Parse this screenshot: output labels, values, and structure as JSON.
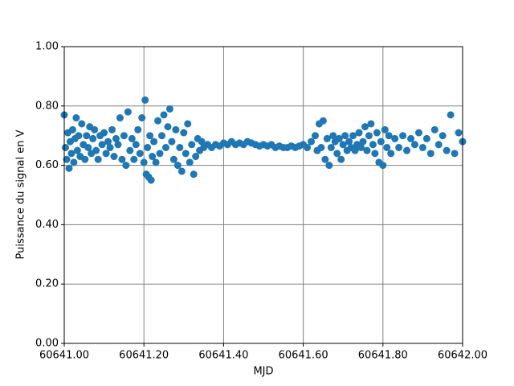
{
  "chart_data": {
    "type": "scatter",
    "xlabel": "MJD",
    "ylabel": "Puissance du signal en V",
    "color": "#1f77b4",
    "grid": true,
    "xlim": [
      60641,
      60642
    ],
    "ylim": [
      0,
      1
    ],
    "xticks": [
      {
        "value": 60641,
        "label": "60641.00"
      },
      {
        "value": 60641.2,
        "label": "60641.20"
      },
      {
        "value": 60641.4,
        "label": "60641.40"
      },
      {
        "value": 60641.6,
        "label": "60641.60"
      },
      {
        "value": 60641.8,
        "label": "60641.80"
      },
      {
        "value": 60642,
        "label": "60642.00"
      }
    ],
    "yticks": [
      {
        "value": 0,
        "label": "0.00"
      },
      {
        "value": 0.2,
        "label": "0.20"
      },
      {
        "value": 0.4,
        "label": "0.40"
      },
      {
        "value": 0.6,
        "label": "0.60"
      },
      {
        "value": 0.8,
        "label": "0.80"
      },
      {
        "value": 1,
        "label": "1.00"
      }
    ],
    "x": [
      60641.0,
      60641.003,
      60641.006,
      60641.009,
      60641.012,
      60641.015,
      60641.018,
      60641.021,
      60641.024,
      60641.027,
      60641.03,
      60641.033,
      60641.036,
      60641.04,
      60641.044,
      60641.048,
      60641.052,
      60641.056,
      60641.06,
      60641.064,
      60641.068,
      60641.072,
      60641.076,
      60641.08,
      60641.085,
      60641.09,
      60641.095,
      60641.1,
      60641.105,
      60641.11,
      60641.115,
      60641.12,
      60641.125,
      60641.13,
      60641.135,
      60641.14,
      60641.145,
      60641.15,
      60641.155,
      60641.16,
      60641.165,
      60641.17,
      60641.175,
      60641.18,
      60641.185,
      60641.19,
      60641.195,
      60641.2,
      60641.203,
      60641.206,
      60641.209,
      60641.212,
      60641.215,
      60641.218,
      60641.221,
      60641.225,
      60641.23,
      60641.235,
      60641.24,
      60641.245,
      60641.25,
      60641.255,
      60641.26,
      60641.265,
      60641.27,
      60641.275,
      60641.28,
      60641.285,
      60641.29,
      60641.295,
      60641.3,
      60641.305,
      60641.31,
      60641.315,
      60641.32,
      60641.325,
      60641.33,
      60641.335,
      60641.34,
      60641.345,
      60641.35,
      60641.36,
      60641.37,
      60641.38,
      60641.39,
      60641.4,
      60641.41,
      60641.42,
      60641.43,
      60641.44,
      60641.45,
      60641.46,
      60641.47,
      60641.48,
      60641.49,
      60641.5,
      60641.51,
      60641.52,
      60641.53,
      60641.54,
      60641.55,
      60641.56,
      60641.57,
      60641.58,
      60641.59,
      60641.6,
      60641.61,
      60641.62,
      60641.63,
      60641.635,
      60641.64,
      60641.645,
      60641.65,
      60641.655,
      60641.66,
      60641.665,
      60641.67,
      60641.675,
      60641.68,
      60641.685,
      60641.69,
      60641.695,
      60641.7,
      60641.705,
      60641.71,
      60641.715,
      60641.72,
      60641.725,
      60641.73,
      60641.735,
      60641.74,
      60641.745,
      60641.75,
      60641.755,
      60641.76,
      60641.765,
      60641.77,
      60641.775,
      60641.78,
      60641.785,
      60641.79,
      60641.795,
      60641.8,
      60641.805,
      60641.81,
      60641.815,
      60641.82,
      60641.83,
      60641.84,
      60641.85,
      60641.86,
      60641.87,
      60641.88,
      60641.89,
      60641.9,
      60641.91,
      60641.92,
      60641.93,
      60641.94,
      60641.95,
      60641.96,
      60641.97,
      60641.98,
      60641.99,
      60642.0
    ],
    "values": [
      0.77,
      0.66,
      0.62,
      0.71,
      0.59,
      0.68,
      0.64,
      0.72,
      0.61,
      0.69,
      0.76,
      0.65,
      0.7,
      0.63,
      0.74,
      0.67,
      0.62,
      0.7,
      0.66,
      0.73,
      0.64,
      0.69,
      0.72,
      0.65,
      0.62,
      0.7,
      0.67,
      0.71,
      0.64,
      0.68,
      0.66,
      0.72,
      0.63,
      0.69,
      0.67,
      0.76,
      0.62,
      0.7,
      0.6,
      0.78,
      0.65,
      0.69,
      0.62,
      0.67,
      0.72,
      0.64,
      0.76,
      0.61,
      0.82,
      0.57,
      0.66,
      0.56,
      0.7,
      0.55,
      0.63,
      0.68,
      0.61,
      0.75,
      0.64,
      0.7,
      0.77,
      0.66,
      0.73,
      0.79,
      0.68,
      0.62,
      0.72,
      0.6,
      0.66,
      0.58,
      0.71,
      0.64,
      0.74,
      0.61,
      0.67,
      0.57,
      0.63,
      0.69,
      0.65,
      0.68,
      0.66,
      0.67,
      0.66,
      0.67,
      0.665,
      0.675,
      0.67,
      0.68,
      0.67,
      0.675,
      0.67,
      0.68,
      0.675,
      0.67,
      0.665,
      0.67,
      0.665,
      0.67,
      0.66,
      0.665,
      0.66,
      0.66,
      0.665,
      0.66,
      0.665,
      0.67,
      0.66,
      0.68,
      0.7,
      0.65,
      0.74,
      0.66,
      0.75,
      0.62,
      0.69,
      0.6,
      0.66,
      0.7,
      0.68,
      0.64,
      0.69,
      0.62,
      0.67,
      0.7,
      0.65,
      0.68,
      0.66,
      0.7,
      0.65,
      0.67,
      0.71,
      0.66,
      0.68,
      0.73,
      0.65,
      0.7,
      0.74,
      0.67,
      0.64,
      0.71,
      0.61,
      0.68,
      0.6,
      0.72,
      0.66,
      0.7,
      0.64,
      0.69,
      0.66,
      0.7,
      0.65,
      0.69,
      0.67,
      0.71,
      0.66,
      0.69,
      0.64,
      0.72,
      0.67,
      0.7,
      0.65,
      0.77,
      0.64,
      0.71,
      0.68
    ]
  }
}
